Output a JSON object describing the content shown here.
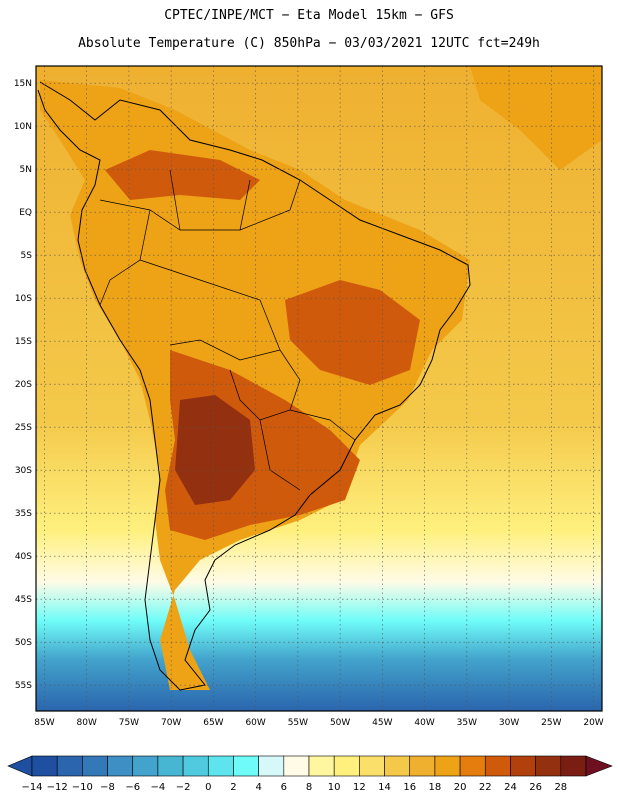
{
  "header": {
    "title_line1": "CPTEC/INPE/MCT −  Eta Model 15km − GFS",
    "title_line2": "Absolute Temperature (C) 850hPa − 03/03/2021 12UTC fct=249h"
  },
  "latitude_labels": [
    "15N",
    "10N",
    "5N",
    "EQ",
    "5S",
    "10S",
    "15S",
    "20S",
    "25S",
    "30S",
    "35S",
    "40S",
    "45S",
    "50S",
    "55S"
  ],
  "longitude_labels": [
    "85W",
    "80W",
    "75W",
    "70W",
    "65W",
    "60W",
    "55W",
    "50W",
    "45W",
    "40W",
    "35W",
    "30W",
    "25W",
    "20W"
  ],
  "colorbar": {
    "labels": [
      "−14",
      "−12",
      "−10",
      "−8",
      "−6",
      "−4",
      "−2",
      "0",
      "2",
      "4",
      "6",
      "8",
      "10",
      "12",
      "14",
      "16",
      "18",
      "20",
      "22",
      "24",
      "26",
      "28"
    ],
    "colors": [
      "#1e4fa0",
      "#2a65ad",
      "#3379b8",
      "#3d8fc4",
      "#43a3cc",
      "#47b6d3",
      "#4fcadf",
      "#5ee4ec",
      "#6ffcf8",
      "#d6f8f8",
      "#fffbe6",
      "#fff6a0",
      "#fff07e",
      "#fae06a",
      "#f4c94a",
      "#efb030",
      "#eea216",
      "#e57c0e",
      "#d05a0c",
      "#b2400c",
      "#923010",
      "#7a1e14"
    ],
    "unit": "C"
  },
  "map_colors": {
    "ocean_south_deep": "#2a65ad",
    "ocean_south_mid": "#43a3cc",
    "ocean_south_light": "#6ffcf8",
    "ocean_south_pale": "#fffbe6",
    "ocean_mid": "#fff07e",
    "ocean_warm": "#f4c94a",
    "ocean_tropic": "#efb030",
    "land_warm": "#eea216",
    "land_hot": "#d05a0c",
    "land_hottest": "#923010"
  }
}
